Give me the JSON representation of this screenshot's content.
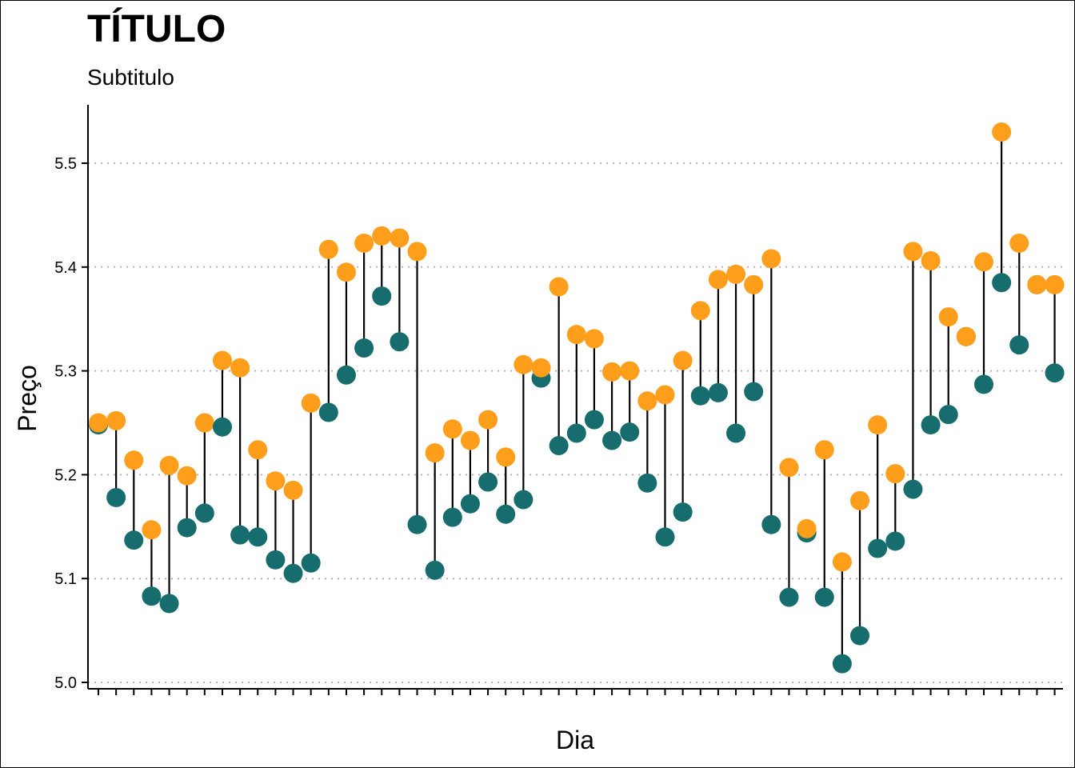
{
  "chart_data": {
    "type": "dumbbell",
    "title": "TÍTULO",
    "subtitle": "Subtitulo",
    "xlabel": "Dia",
    "ylabel": "Preço",
    "ylim": [
      4.995,
      5.555
    ],
    "yticks": [
      5.0,
      5.1,
      5.2,
      5.3,
      5.4,
      5.5
    ],
    "ytick_labels": [
      "5.0",
      "5.1",
      "5.2",
      "5.3",
      "5.4",
      "5.5"
    ],
    "grid": "horizontal-dotted",
    "colors": {
      "series_a": "#ff9e1b",
      "series_b": "#176d6d",
      "segment": "#000000",
      "grid": "#b3b3b3"
    },
    "n_categories": 55,
    "series": [
      {
        "color": "#ff9e1b",
        "values": [
          5.25,
          5.252,
          5.214,
          5.147,
          5.209,
          5.199,
          5.25,
          5.31,
          5.303,
          5.224,
          5.194,
          5.185,
          5.269,
          5.417,
          5.395,
          5.423,
          5.43,
          5.428,
          5.415,
          5.221,
          5.244,
          5.233,
          5.253,
          5.217,
          5.306,
          5.303,
          5.381,
          5.335,
          5.331,
          5.299,
          5.3,
          5.271,
          5.277,
          5.31,
          5.358,
          5.388,
          5.393,
          5.383,
          5.408,
          5.207,
          5.148,
          5.224,
          5.116,
          5.175,
          5.248,
          5.201,
          5.415,
          5.406,
          5.352,
          5.333,
          5.405,
          5.53,
          5.423,
          5.383,
          5.383
        ]
      },
      {
        "color": "#176d6d",
        "values": [
          5.248,
          5.178,
          5.137,
          5.083,
          5.076,
          5.149,
          5.163,
          5.246,
          5.142,
          5.14,
          5.118,
          5.105,
          5.115,
          5.26,
          5.296,
          5.322,
          5.372,
          5.328,
          5.152,
          5.108,
          5.159,
          5.172,
          5.193,
          5.162,
          5.176,
          5.293,
          5.228,
          5.24,
          5.253,
          5.233,
          5.241,
          5.192,
          5.14,
          5.164,
          5.276,
          5.279,
          5.24,
          5.28,
          5.152,
          5.082,
          5.144,
          5.082,
          5.018,
          5.045,
          5.129,
          5.136,
          5.186,
          5.248,
          5.258,
          5.333,
          5.287,
          5.385,
          5.325,
          5.383,
          5.298
        ]
      }
    ]
  }
}
